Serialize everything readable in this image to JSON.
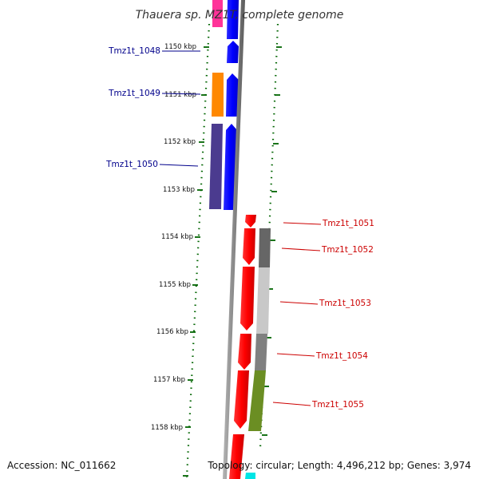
{
  "title": "Thauera sp. MZ1T, complete genome",
  "accession": "Accession: NC_011662",
  "summary": "Topology: circular; Length: 4,496,212 bp; Genes: 3,974",
  "ticks": [
    "1150 kbp",
    "1151 kbp",
    "1152 kbp",
    "1153 kbp",
    "1154 kbp",
    "1155 kbp",
    "1156 kbp",
    "1157 kbp",
    "1158 kbp"
  ],
  "genes": [
    {
      "name": "Tmz1t_1048",
      "strand": "reverse",
      "color": "#00008b"
    },
    {
      "name": "Tmz1t_1049",
      "strand": "reverse",
      "color": "#00008b"
    },
    {
      "name": "Tmz1t_1050",
      "strand": "reverse",
      "color": "#00008b"
    },
    {
      "name": "Tmz1t_1051",
      "strand": "forward",
      "color": "#cc0000"
    },
    {
      "name": "Tmz1t_1052",
      "strand": "forward",
      "color": "#cc0000"
    },
    {
      "name": "Tmz1t_1053",
      "strand": "forward",
      "color": "#cc0000"
    },
    {
      "name": "Tmz1t_1054",
      "strand": "forward",
      "color": "#cc0000"
    },
    {
      "name": "Tmz1t_1055",
      "strand": "forward",
      "color": "#cc0000"
    }
  ],
  "colors": {
    "reverse_cds": "#0000ff",
    "forward_cds": "#ff0000",
    "backbone": "#888888",
    "tick": "#006400",
    "cog_pink": "#ff3399",
    "cog_orange": "#ff8800",
    "cog_purple": "#4b3b8f",
    "cog_dark_gray": "#666666",
    "cog_light_gray": "#c8c8c8",
    "cog_gray": "#808080",
    "cog_olive": "#6b8e23",
    "cog_cyan": "#00e5e5"
  }
}
